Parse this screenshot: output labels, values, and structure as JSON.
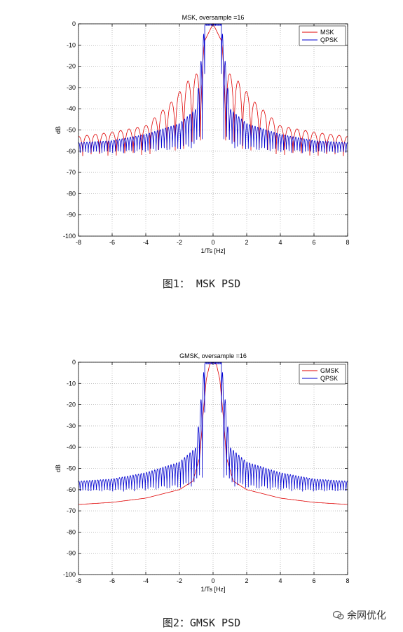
{
  "captions": {
    "fig1": "图1： MSK PSD",
    "fig2": "图2：GMSK PSD"
  },
  "watermark": "余网优化",
  "colors": {
    "red": "#e00000",
    "blue": "#0000d0"
  },
  "chart_data": [
    {
      "type": "line",
      "title": "MSK, oversample =16",
      "xlabel": "1/Ts [Hz]",
      "ylabel": "dB",
      "xlim": [
        -8,
        8
      ],
      "ylim": [
        -100,
        0
      ],
      "xticks": [
        -8,
        -6,
        -4,
        -2,
        0,
        2,
        4,
        6,
        8
      ],
      "yticks": [
        0,
        -10,
        -20,
        -30,
        -40,
        -50,
        -60,
        -70,
        -80,
        -90,
        -100
      ],
      "grid": true,
      "legend_position": "top-right",
      "series": [
        {
          "name": "MSK",
          "color": "#e00000",
          "envelope_x": [
            -8,
            -6,
            -4,
            -2.5,
            -1.5,
            -0.75,
            -0.5,
            0,
            0.5,
            0.75,
            1.5,
            2.5,
            4,
            6,
            8
          ],
          "envelope_y": [
            -53,
            -51,
            -48,
            -37,
            -27,
            -22,
            -8,
            0,
            -8,
            -22,
            -27,
            -37,
            -48,
            -51,
            -53
          ],
          "null_depth_y": -64
        },
        {
          "name": "QPSK",
          "color": "#0000d0",
          "envelope_x": [
            -8,
            -6,
            -4,
            -2,
            -1,
            -0.5,
            0,
            0.5,
            1,
            2,
            4,
            6,
            8
          ],
          "envelope_y": [
            -56,
            -55,
            -52,
            -47,
            -40,
            0,
            0,
            0,
            -40,
            -47,
            -52,
            -55,
            -56
          ],
          "null_depth_y": -62
        }
      ]
    },
    {
      "type": "line",
      "title": "GMSK, oversample =16",
      "xlabel": "1/Ts [Hz]",
      "ylabel": "dB",
      "xlim": [
        -8,
        8
      ],
      "ylim": [
        -100,
        0
      ],
      "xticks": [
        -8,
        -6,
        -4,
        -2,
        0,
        2,
        4,
        6,
        8
      ],
      "yticks": [
        0,
        -10,
        -20,
        -30,
        -40,
        -50,
        -60,
        -70,
        -80,
        -90,
        -100
      ],
      "grid": true,
      "legend_position": "top-right",
      "series": [
        {
          "name": "GMSK",
          "color": "#e00000",
          "x": [
            -8,
            -6,
            -4,
            -2,
            -1.2,
            -0.8,
            -0.6,
            -0.4,
            -0.2,
            0,
            0.2,
            0.4,
            0.6,
            0.8,
            1.2,
            2,
            4,
            6,
            8
          ],
          "y": [
            -67,
            -66,
            -64,
            -60,
            -56,
            -45,
            -25,
            -8,
            -1,
            0,
            -1,
            -8,
            -25,
            -45,
            -56,
            -60,
            -64,
            -66,
            -67
          ]
        },
        {
          "name": "QPSK",
          "color": "#0000d0",
          "envelope_x": [
            -8,
            -6,
            -4,
            -2,
            -1,
            -0.5,
            0,
            0.5,
            1,
            2,
            4,
            6,
            8
          ],
          "envelope_y": [
            -56,
            -55,
            -52,
            -47,
            -40,
            0,
            0,
            0,
            -40,
            -47,
            -52,
            -55,
            -56
          ],
          "null_depth_y": -62
        }
      ]
    }
  ]
}
